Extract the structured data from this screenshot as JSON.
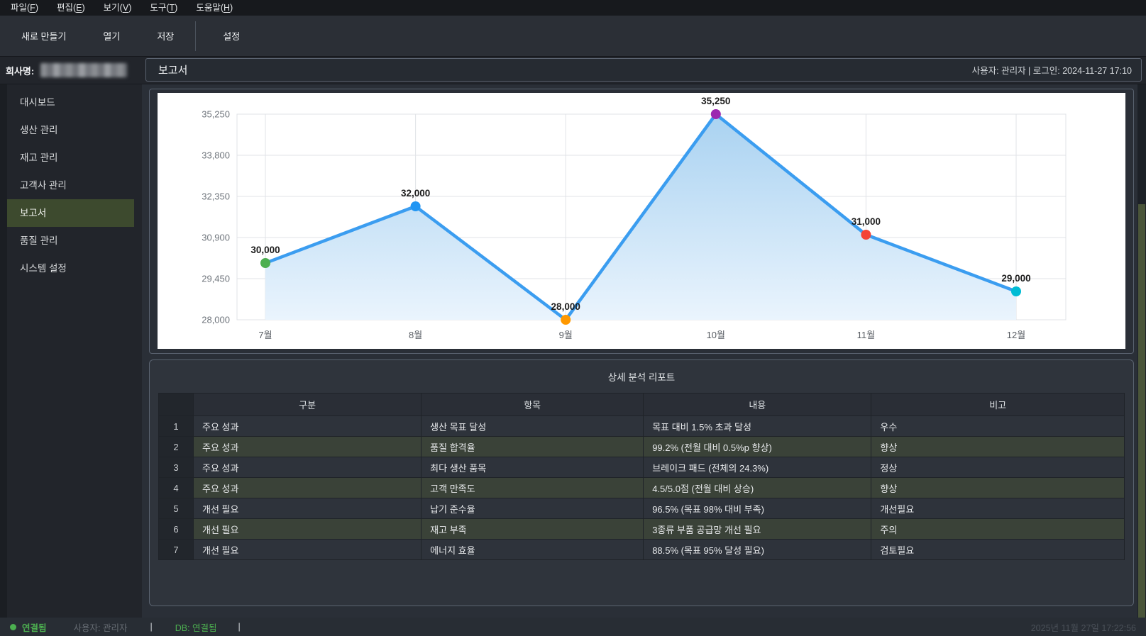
{
  "menu_bar": {
    "items": [
      "파일(F)",
      "편집(E)",
      "보기(V)",
      "도구(T)",
      "도움말(H)"
    ]
  },
  "toolbar": {
    "buttons": [
      "새로 만들기",
      "열기",
      "저장",
      "설정"
    ]
  },
  "header": {
    "company_label": "회사명:",
    "page_title": "보고서",
    "user_info": "사용자: 관리자 | 로그인: 2024-11-27 17:10"
  },
  "sidebar": {
    "items": [
      {
        "label": "대시보드",
        "active": false
      },
      {
        "label": "생산 관리",
        "active": false
      },
      {
        "label": "재고 관리",
        "active": false
      },
      {
        "label": "고객사 관리",
        "active": false
      },
      {
        "label": "보고서",
        "active": true
      },
      {
        "label": "품질 관리",
        "active": false
      },
      {
        "label": "시스템 설정",
        "active": false
      }
    ]
  },
  "chart_data": {
    "type": "line",
    "categories": [
      "7월",
      "8월",
      "9월",
      "10월",
      "11월",
      "12월"
    ],
    "values": [
      30000,
      32000,
      28000,
      35250,
      31000,
      29000
    ],
    "value_labels": [
      "30,000",
      "32,000",
      "28,000",
      "35,250",
      "31,000",
      "29,000"
    ],
    "y_ticks": [
      28000,
      29450,
      30900,
      32350,
      33800,
      35250
    ],
    "y_tick_labels": [
      "28,000",
      "29,450",
      "30,900",
      "32,350",
      "33,800",
      "35,250"
    ],
    "ylim": [
      28000,
      35250
    ],
    "grid": true,
    "background": "#ffffff",
    "line_color": "#3b9df0",
    "area_fill_top": "#a9d2f1",
    "area_fill_bottom": "#eaf4fd",
    "point_colors": [
      "#4caf50",
      "#2196f3",
      "#ff9800",
      "#9c27b0",
      "#f44336",
      "#00bcd4"
    ],
    "grid_color": "#e0e3e7",
    "tick_color": "#70767d",
    "label_color": "#1d1d1d"
  },
  "report_table": {
    "title": "상세 분석 리포트",
    "columns": [
      "",
      "구분",
      "항목",
      "내용",
      "비고"
    ],
    "col_widths": [
      "3.6%",
      "23.6%",
      "23.0%",
      "23.6%",
      "26.2%"
    ],
    "rows": [
      [
        "1",
        "주요 성과",
        "생산 목표 달성",
        "목표 대비 1.5% 초과 달성",
        "우수"
      ],
      [
        "2",
        "주요 성과",
        "품질 합격율",
        "99.2% (전월 대비 0.5%p 향상)",
        "향상"
      ],
      [
        "3",
        "주요 성과",
        "최다 생산 품목",
        "브레이크 패드 (전체의 24.3%)",
        "정상"
      ],
      [
        "4",
        "주요 성과",
        "고객 만족도",
        "4.5/5.0점 (전월 대비 상승)",
        "향상"
      ],
      [
        "5",
        "개선 필요",
        "납기 준수율",
        "96.5% (목표 98% 대비 부족)",
        "개선필요"
      ],
      [
        "6",
        "개선 필요",
        "재고 부족",
        "3종류 부품 공급망 개선 필요",
        "주의"
      ],
      [
        "7",
        "개선 필요",
        "에너지 효율",
        "88.5% (목표 95% 달성 필요)",
        "검토필요"
      ]
    ]
  },
  "status_bar": {
    "connection": "연결됨",
    "user": "사용자: 관리자",
    "separator": "|",
    "db": "DB: 연결됨",
    "clock": "2025년 11월 27일 17:22:56",
    "status_green": "#4caf50"
  }
}
